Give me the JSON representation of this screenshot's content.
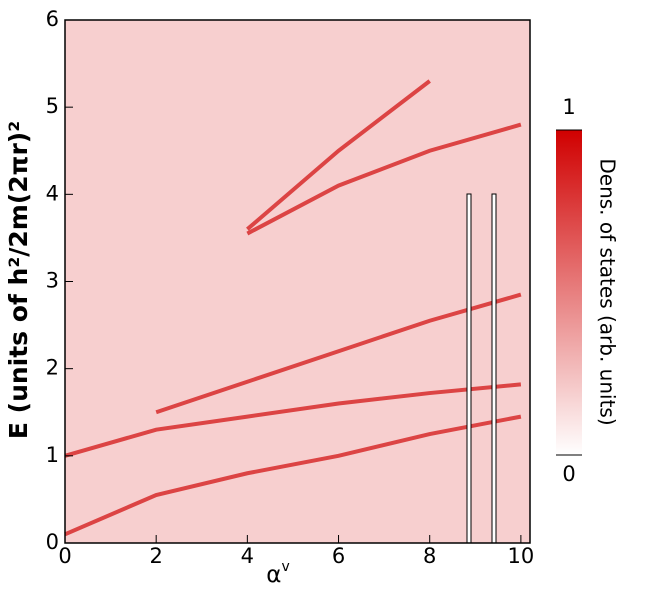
{
  "chart_data": {
    "type": "line",
    "y_label": "E (units of h²/2m(2πr)²",
    "x_label": "α",
    "x_label_sup": "v",
    "x": [
      0,
      2,
      4,
      6,
      8,
      10
    ],
    "series": [
      {
        "color": "#d42020",
        "values": [
          0.1,
          0.55,
          0.8,
          1.0,
          1.25,
          1.45
        ]
      },
      {
        "color": "#d42020",
        "values": [
          1.0,
          1.3,
          1.45,
          1.6,
          1.72,
          1.82
        ]
      },
      {
        "color": "#d42020",
        "values": [
          null,
          1.5,
          1.85,
          2.2,
          2.55,
          2.85
        ]
      },
      {
        "color": "#d42020",
        "values": [
          null,
          null,
          3.55,
          4.1,
          4.5,
          4.8
        ]
      },
      {
        "color": "#d42020",
        "values": [
          null,
          null,
          3.6,
          4.5,
          5.3,
          null
        ]
      }
    ],
    "xlim": [
      0,
      10.2
    ],
    "ylim": [
      0,
      6
    ],
    "xticks": [
      0,
      2,
      4,
      6,
      8,
      10
    ],
    "yticks": [
      0,
      1,
      2,
      3,
      4,
      5,
      6
    ],
    "colorbar": {
      "title": "Dens. of states (arb. units)",
      "lim": [
        0,
        1
      ],
      "ticks": [
        0,
        1
      ],
      "color": "#d00000"
    }
  }
}
